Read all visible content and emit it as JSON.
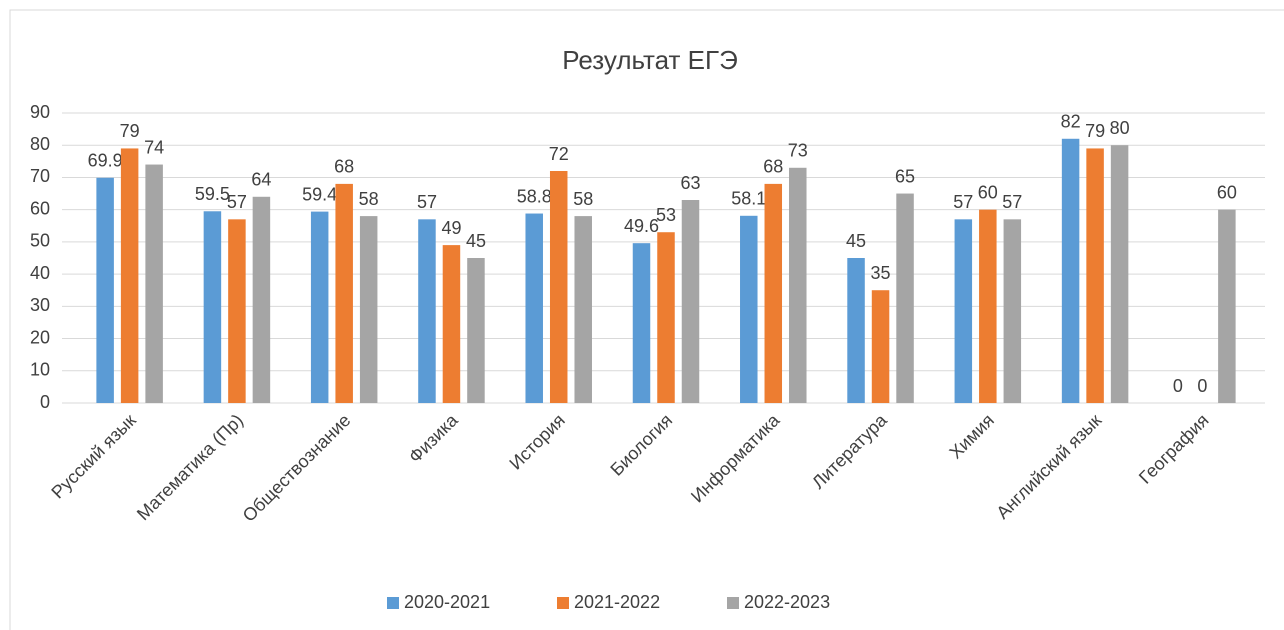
{
  "chart_data": {
    "type": "bar",
    "title": "Результат ЕГЭ",
    "categories": [
      "Русский язык",
      "Математика (Пр)",
      "Обществознание",
      "Физика",
      "История",
      "Биология",
      "Информатика",
      "Литература",
      "Химия",
      "Английский язык",
      "География"
    ],
    "series": [
      {
        "name": "2020-2021",
        "color": "#5b9bd5",
        "values": [
          69.9,
          59.5,
          59.4,
          57,
          58.8,
          49.6,
          58.1,
          45,
          57,
          82,
          0
        ]
      },
      {
        "name": "2021-2022",
        "color": "#ed7d31",
        "values": [
          79,
          57,
          68,
          49,
          72,
          53,
          68,
          35,
          60,
          79,
          0
        ]
      },
      {
        "name": "2022-2023",
        "color": "#a5a5a5",
        "values": [
          74,
          64,
          58,
          45,
          58,
          63,
          73,
          65,
          57,
          80,
          60
        ]
      }
    ],
    "ylim": [
      0,
      90
    ],
    "yticks": [
      0,
      10,
      20,
      30,
      40,
      50,
      60,
      70,
      80,
      90
    ],
    "grid": true,
    "legend": "bottom"
  }
}
